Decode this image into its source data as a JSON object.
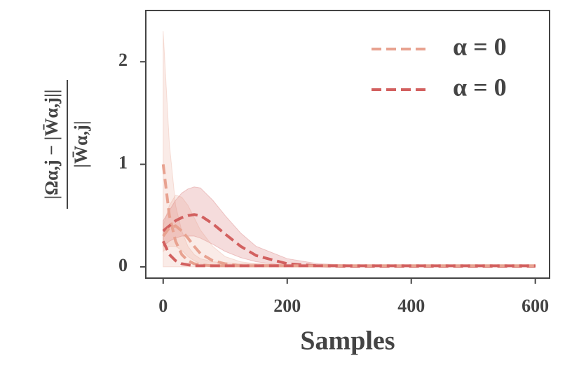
{
  "chart_data": {
    "type": "line",
    "xlabel": "Samples",
    "ylabel": {
      "numerator": "|Ωα,j − |W̄α,j||",
      "denominator": "|W̄α,j|"
    },
    "x": [
      0,
      10,
      20,
      30,
      40,
      50,
      60,
      80,
      100,
      125,
      150,
      200,
      250,
      300,
      400,
      500,
      600
    ],
    "xlim": [
      -28,
      623
    ],
    "ylim": [
      -0.11,
      2.5
    ],
    "xticks": [
      0,
      200,
      400,
      600
    ],
    "yticks": [
      0,
      1,
      2
    ],
    "legend": "upper right",
    "series": [
      {
        "name": "α = 0",
        "color": "#e8a290",
        "values": [
          1.0,
          0.5,
          0.25,
          0.12,
          0.06,
          0.03,
          0.02,
          0.01,
          0.01,
          0.01,
          0.01,
          0.01,
          0.01,
          0.01,
          0.01,
          0.01,
          0.01
        ],
        "upper": [
          2.3,
          1.2,
          0.6,
          0.35,
          0.2,
          0.12,
          0.08,
          0.05,
          0.04,
          0.03,
          0.03,
          0.02,
          0.02,
          0.02,
          0.02,
          0.02,
          0.02
        ],
        "lower": [
          0,
          0,
          0,
          0,
          0,
          0,
          0,
          0,
          0,
          0,
          0,
          0,
          0,
          0,
          0,
          0,
          0
        ]
      },
      {
        "name": "α = 0",
        "color": "#d2605f",
        "values": [
          0.35,
          0.4,
          0.45,
          0.48,
          0.5,
          0.51,
          0.5,
          0.42,
          0.32,
          0.2,
          0.11,
          0.03,
          0.01,
          0.005,
          0.005,
          0.005,
          0.005
        ],
        "upper": [
          0.45,
          0.55,
          0.65,
          0.72,
          0.76,
          0.78,
          0.77,
          0.65,
          0.5,
          0.33,
          0.2,
          0.08,
          0.03,
          0.02,
          0.02,
          0.02,
          0.02
        ],
        "lower": [
          0.2,
          0.25,
          0.28,
          0.3,
          0.3,
          0.3,
          0.28,
          0.22,
          0.15,
          0.09,
          0.05,
          0.01,
          0,
          0,
          0,
          0,
          0
        ]
      },
      {
        "color": "#e8a290",
        "values": [
          0.3,
          0.38,
          0.4,
          0.35,
          0.28,
          0.2,
          0.13,
          0.06,
          0.03,
          0.01,
          0.01,
          0.01,
          0.01,
          0.01,
          0.01,
          0.01,
          0.01
        ],
        "upper": [
          0.4,
          0.6,
          0.7,
          0.68,
          0.6,
          0.48,
          0.36,
          0.2,
          0.1,
          0.05,
          0.03,
          0.02,
          0.02,
          0.02,
          0.02,
          0.02,
          0.02
        ],
        "lower": [
          0.15,
          0.2,
          0.2,
          0.16,
          0.1,
          0.06,
          0.03,
          0.01,
          0,
          0,
          0,
          0,
          0,
          0,
          0,
          0,
          0
        ]
      },
      {
        "color": "#d2605f",
        "values": [
          0.25,
          0.12,
          0.06,
          0.03,
          0.02,
          0.01,
          0.01,
          0.01,
          0.01,
          0.01,
          0.01,
          0.01,
          0.01,
          0.01,
          0.01,
          0.01,
          0.01
        ]
      }
    ]
  }
}
